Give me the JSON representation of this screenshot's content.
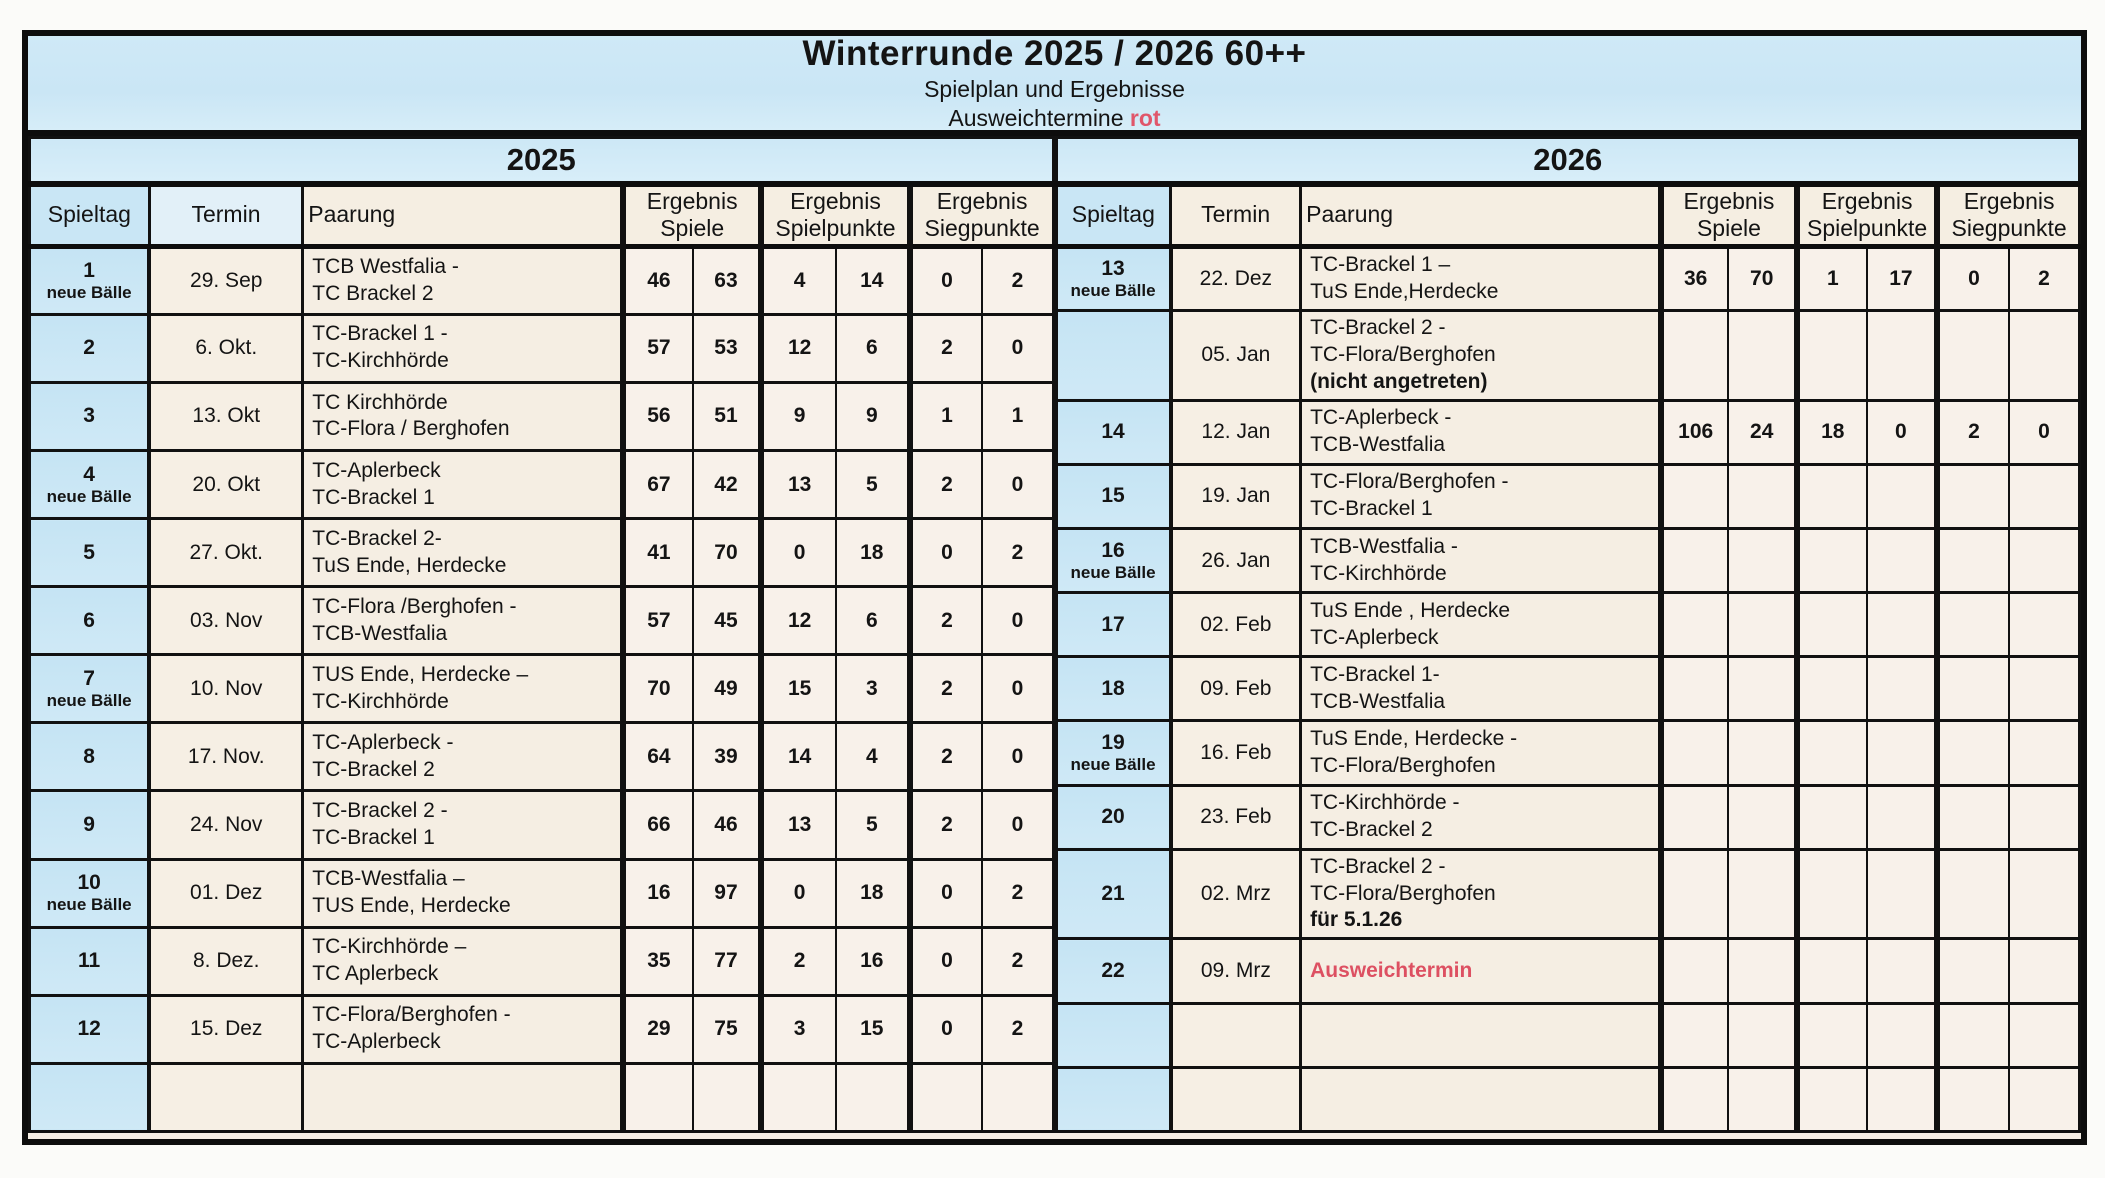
{
  "header": {
    "title": "Winterrunde 2025 / 2026  60++",
    "subtitle": "Spielplan und Ergebnisse",
    "note_text": "Ausweichtermine ",
    "note_accent": "rot"
  },
  "colors": {
    "accent_red": "#e0566a",
    "band_blue": "#cfe9f7",
    "cell_blue": "#c7e5f4",
    "cell_cream": "#f6efe6",
    "border_black": "#0d0d0d"
  },
  "column_headers": {
    "spieltag": "Spieltag",
    "termin": "Termin",
    "paarung": "Paarung",
    "groups": [
      {
        "line1": "Ergebnis",
        "line2": "Spiele"
      },
      {
        "line1": "Ergebnis",
        "line2": "Spielpunkte"
      },
      {
        "line1": "Ergebnis",
        "line2": "Siegpunkte"
      }
    ]
  },
  "tables": {
    "left": {
      "year": "2025",
      "rows": [
        {
          "day": "1",
          "balls": "neue Bälle",
          "date": "29. Sep",
          "pair": [
            "TCB Westfalia -",
            "TC Brackel 2"
          ],
          "pair_bold": "",
          "pair_red": "",
          "res": [
            "46",
            "63",
            "4",
            "14",
            "0",
            "2"
          ]
        },
        {
          "day": "2",
          "balls": "",
          "date": "6. Okt.",
          "pair": [
            "TC-Brackel 1 -",
            "TC-Kirchhörde"
          ],
          "pair_bold": "",
          "pair_red": "",
          "res": [
            "57",
            "53",
            "12",
            "6",
            "2",
            "0"
          ]
        },
        {
          "day": "3",
          "balls": "",
          "date": "13. Okt",
          "pair": [
            "TC Kirchhörde",
            "TC-Flora / Berghofen"
          ],
          "pair_bold": "",
          "pair_red": "",
          "res": [
            "56",
            "51",
            "9",
            "9",
            "1",
            "1"
          ]
        },
        {
          "day": "4",
          "balls": "neue Bälle",
          "date": "20. Okt",
          "pair": [
            "TC-Aplerbeck",
            "TC-Brackel 1"
          ],
          "pair_bold": "",
          "pair_red": "",
          "res": [
            "67",
            "42",
            "13",
            "5",
            "2",
            "0"
          ]
        },
        {
          "day": "5",
          "balls": "",
          "date": "27. Okt.",
          "pair": [
            "TC-Brackel 2-",
            "TuS Ende, Herdecke"
          ],
          "pair_bold": "",
          "pair_red": "",
          "res": [
            "41",
            "70",
            "0",
            "18",
            "0",
            "2"
          ]
        },
        {
          "day": "6",
          "balls": "",
          "date": "03. Nov",
          "pair": [
            "TC-Flora /Berghofen -",
            "TCB-Westfalia"
          ],
          "pair_bold": "",
          "pair_red": "",
          "res": [
            "57",
            "45",
            "12",
            "6",
            "2",
            "0"
          ]
        },
        {
          "day": "7",
          "balls": "neue Bälle",
          "date": "10. Nov",
          "pair": [
            "TUS Ende, Herdecke –",
            "TC-Kirchhörde"
          ],
          "pair_bold": "",
          "pair_red": "",
          "res": [
            "70",
            "49",
            "15",
            "3",
            "2",
            "0"
          ]
        },
        {
          "day": "8",
          "balls": "",
          "date": "17. Nov.",
          "pair": [
            "TC-Aplerbeck -",
            "TC-Brackel 2"
          ],
          "pair_bold": "",
          "pair_red": "",
          "res": [
            "64",
            "39",
            "14",
            "4",
            "2",
            "0"
          ]
        },
        {
          "day": "9",
          "balls": "",
          "date": "24. Nov",
          "pair": [
            "TC-Brackel 2 -",
            "TC-Brackel 1"
          ],
          "pair_bold": "",
          "pair_red": "",
          "res": [
            "66",
            "46",
            "13",
            "5",
            "2",
            "0"
          ]
        },
        {
          "day": "10",
          "balls": "neue Bälle",
          "date": "01. Dez",
          "pair": [
            "TCB-Westfalia –",
            "TUS Ende, Herdecke"
          ],
          "pair_bold": "",
          "pair_red": "",
          "res": [
            "16",
            "97",
            "0",
            "18",
            "0",
            "2"
          ]
        },
        {
          "day": "11",
          "balls": "",
          "date": "8. Dez.",
          "pair": [
            "TC-Kirchhörde –",
            "TC Aplerbeck"
          ],
          "pair_bold": "",
          "pair_red": "",
          "res": [
            "35",
            "77",
            "2",
            "16",
            "0",
            "2"
          ]
        },
        {
          "day": "12",
          "balls": "",
          "date": "15. Dez",
          "pair": [
            "TC-Flora/Berghofen -",
            "TC-Aplerbeck"
          ],
          "pair_bold": "",
          "pair_red": "",
          "res": [
            "29",
            "75",
            "3",
            "15",
            "0",
            "2"
          ]
        },
        {
          "day": "",
          "balls": "",
          "date": "",
          "pair": [],
          "pair_bold": "",
          "pair_red": "",
          "res": [
            "",
            "",
            "",
            "",
            "",
            ""
          ]
        }
      ]
    },
    "right": {
      "year": "2026",
      "rows": [
        {
          "day": "13",
          "balls": "neue Bälle",
          "date": "22. Dez",
          "pair": [
            "TC-Brackel 1 –",
            "TuS Ende,Herdecke"
          ],
          "pair_bold": "",
          "pair_red": "",
          "res": [
            "36",
            "70",
            "1",
            "17",
            "0",
            "2"
          ]
        },
        {
          "day": "",
          "balls": "",
          "date": "05. Jan",
          "pair": [
            "TC-Brackel 2 -",
            "TC-Flora/Berghofen"
          ],
          "pair_bold": "(nicht angetreten)",
          "pair_red": "",
          "res": [
            "",
            "",
            "",
            "",
            "",
            ""
          ]
        },
        {
          "day": "14",
          "balls": "",
          "date": "12. Jan",
          "pair": [
            "TC-Aplerbeck -",
            "TCB-Westfalia"
          ],
          "pair_bold": "",
          "pair_red": "",
          "res": [
            "106",
            "24",
            "18",
            "0",
            "2",
            "0"
          ]
        },
        {
          "day": "15",
          "balls": "",
          "date": "19. Jan",
          "pair": [
            "TC-Flora/Berghofen -",
            "TC-Brackel 1"
          ],
          "pair_bold": "",
          "pair_red": "",
          "res": [
            "",
            "",
            "",
            "",
            "",
            ""
          ]
        },
        {
          "day": "16",
          "balls": "neue Bälle",
          "date": "26. Jan",
          "pair": [
            "TCB-Westfalia -",
            "TC-Kirchhörde"
          ],
          "pair_bold": "",
          "pair_red": "",
          "res": [
            "",
            "",
            "",
            "",
            "",
            ""
          ]
        },
        {
          "day": "17",
          "balls": "",
          "date": "02. Feb",
          "pair": [
            "TuS Ende , Herdecke",
            "TC-Aplerbeck"
          ],
          "pair_bold": "",
          "pair_red": "",
          "res": [
            "",
            "",
            "",
            "",
            "",
            ""
          ]
        },
        {
          "day": "18",
          "balls": "",
          "date": "09. Feb",
          "pair": [
            "TC-Brackel 1-",
            "TCB-Westfalia"
          ],
          "pair_bold": "",
          "pair_red": "",
          "res": [
            "",
            "",
            "",
            "",
            "",
            ""
          ]
        },
        {
          "day": "19",
          "balls": "neue Bälle",
          "date": "16. Feb",
          "pair": [
            "TuS Ende, Herdecke -",
            "TC-Flora/Berghofen"
          ],
          "pair_bold": "",
          "pair_red": "",
          "res": [
            "",
            "",
            "",
            "",
            "",
            ""
          ]
        },
        {
          "day": "20",
          "balls": "",
          "date": "23. Feb",
          "pair": [
            "TC-Kirchhörde  -",
            "TC-Brackel 2"
          ],
          "pair_bold": "",
          "pair_red": "",
          "res": [
            "",
            "",
            "",
            "",
            "",
            ""
          ]
        },
        {
          "day": "21",
          "balls": "",
          "date": "02. Mrz",
          "pair": [
            "TC-Brackel 2 -",
            "TC-Flora/Berghofen"
          ],
          "pair_bold": "für 5.1.26",
          "pair_red": "",
          "res": [
            "",
            "",
            "",
            "",
            "",
            ""
          ]
        },
        {
          "day": "22",
          "balls": "",
          "date": "09. Mrz",
          "pair": [],
          "pair_bold": "",
          "pair_red": "Ausweichtermin",
          "res": [
            "",
            "",
            "",
            "",
            "",
            ""
          ]
        },
        {
          "day": "",
          "balls": "",
          "date": "",
          "pair": [],
          "pair_bold": "",
          "pair_red": "",
          "res": [
            "",
            "",
            "",
            "",
            "",
            ""
          ]
        },
        {
          "day": "",
          "balls": "",
          "date": "",
          "pair": [],
          "pair_bold": "",
          "pair_red": "",
          "res": [
            "",
            "",
            "",
            "",
            "",
            ""
          ]
        }
      ]
    }
  }
}
